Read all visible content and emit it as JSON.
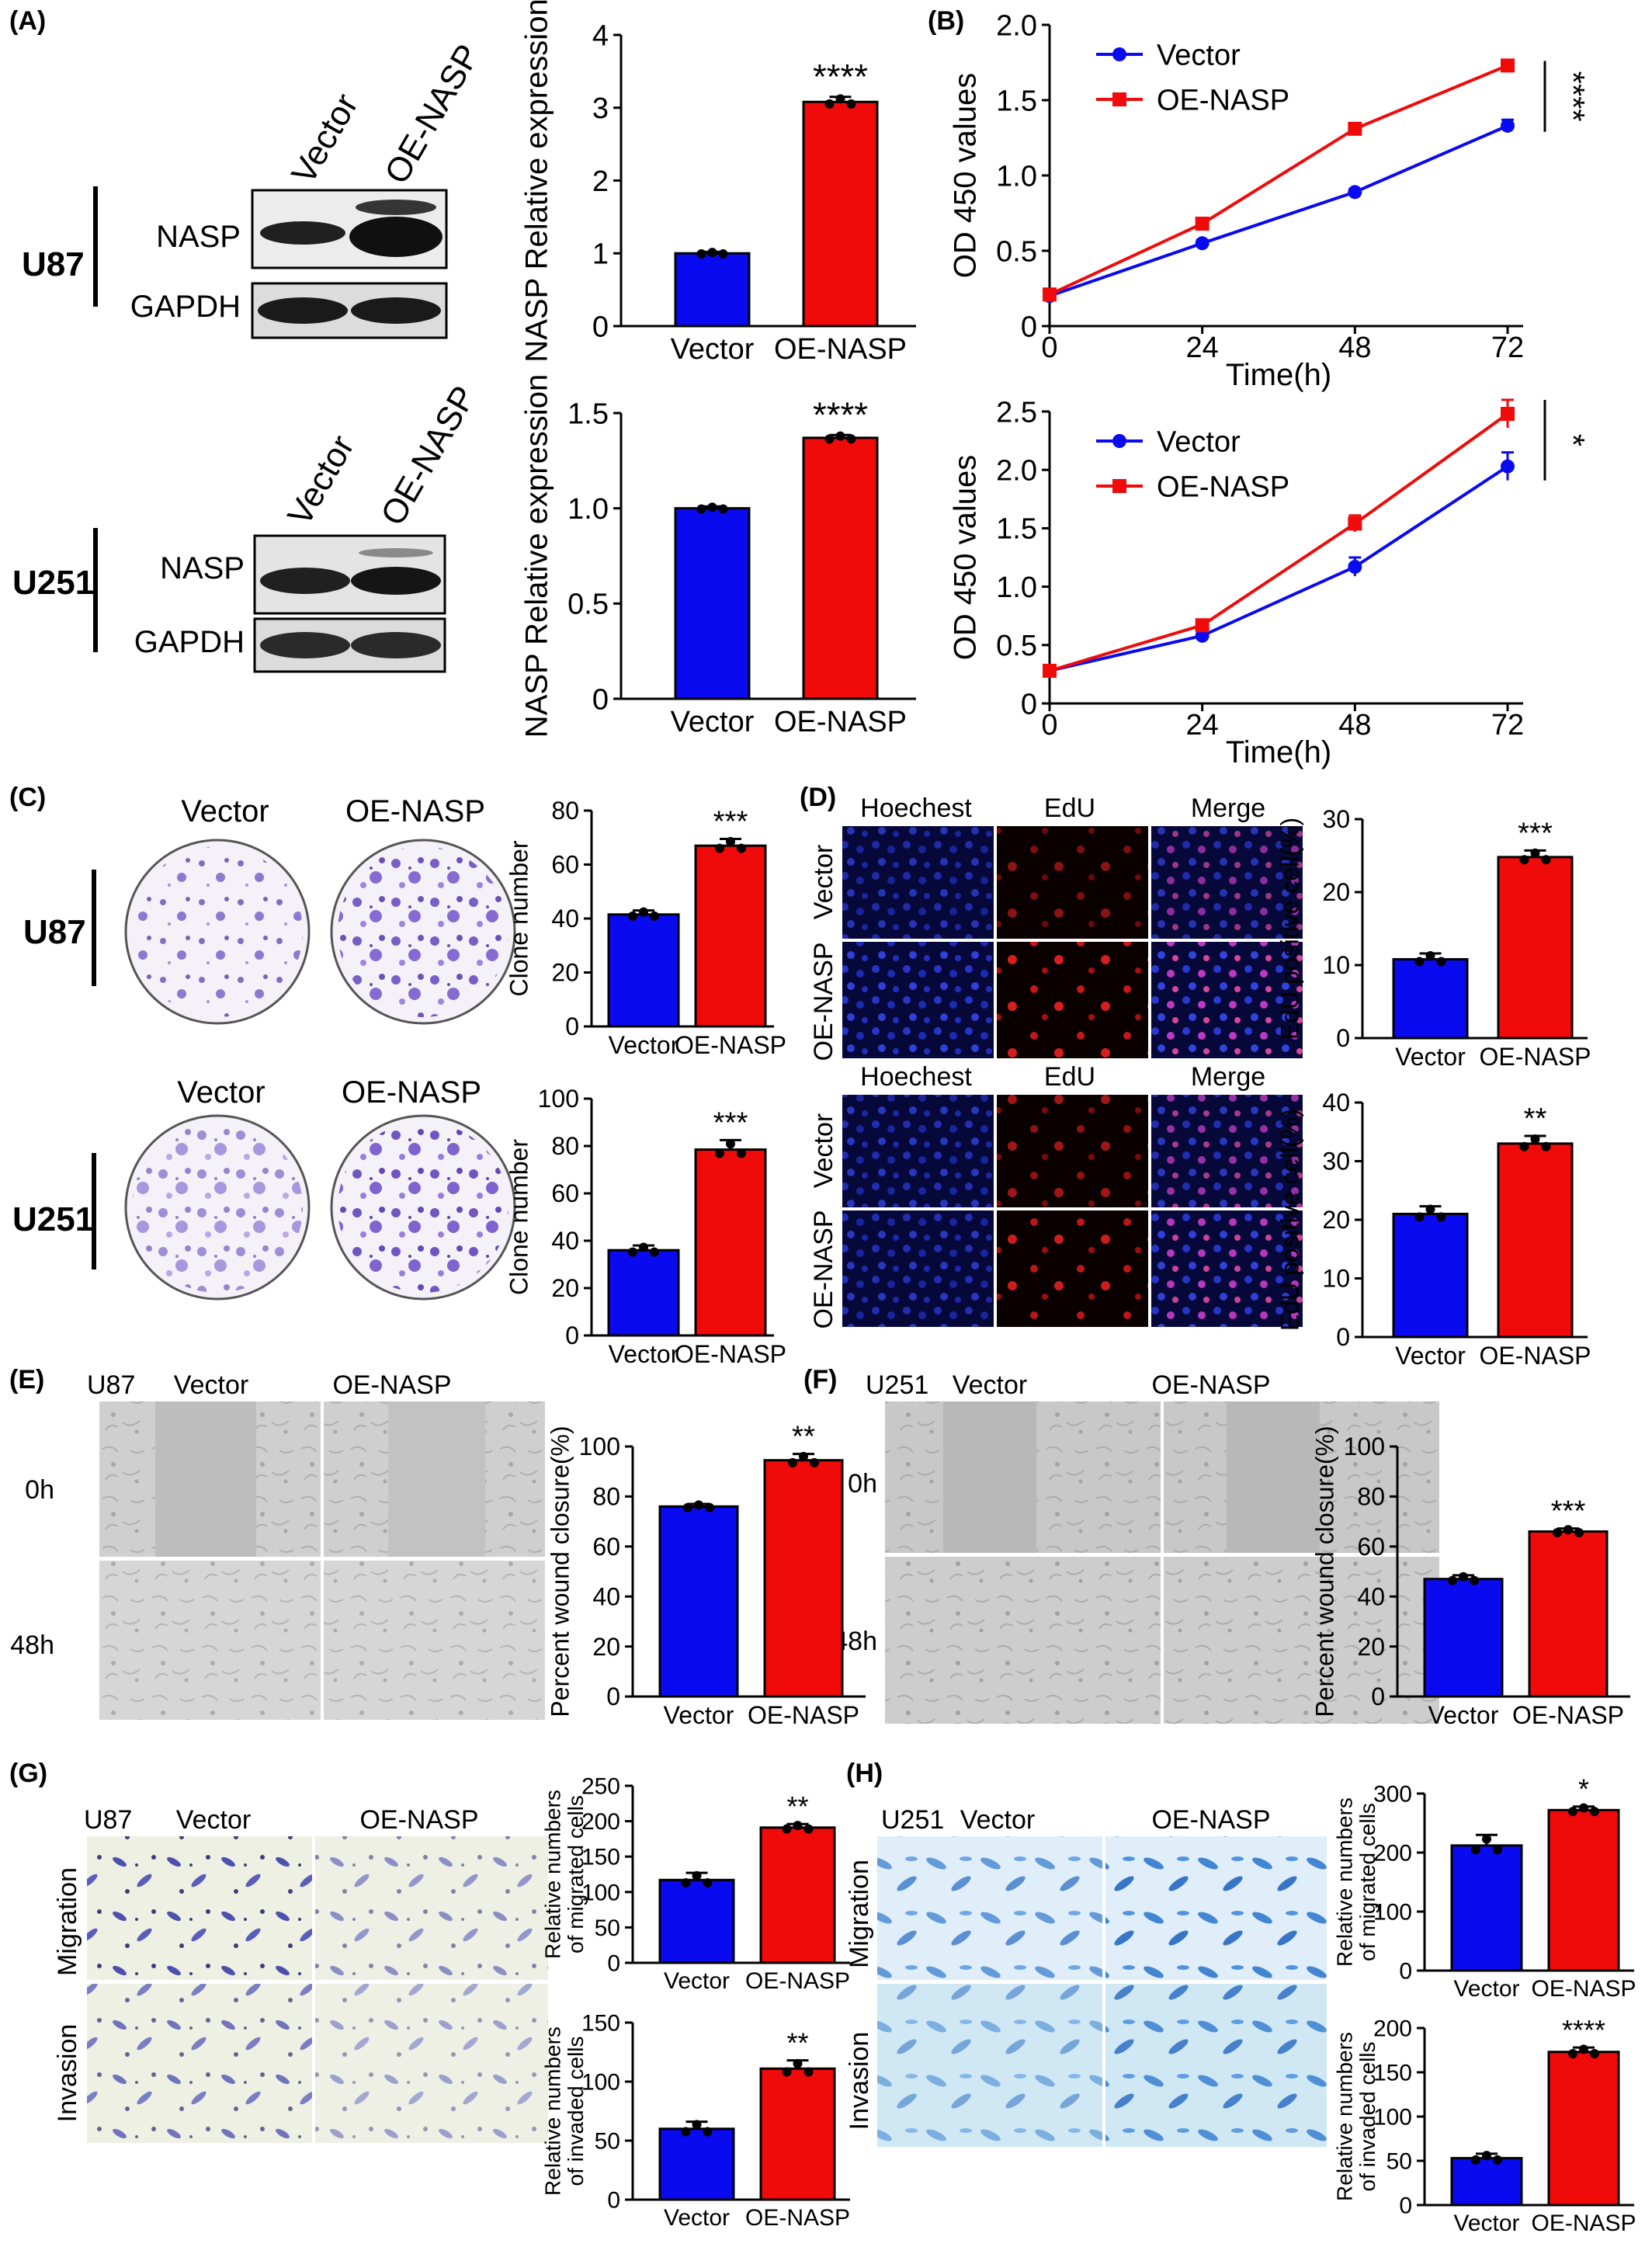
{
  "panels": {
    "A": "(A)",
    "B": "(B)",
    "C": "(C)",
    "D": "(D)",
    "E": "(E)",
    "F": "(F)",
    "G": "(G)",
    "H": "(H)"
  },
  "colors": {
    "vector": "#0a0af0",
    "oe": "#f00a0a"
  },
  "labels": {
    "vector": "Vector",
    "oe": "OE-NASP",
    "u87": "U87",
    "u251": "U251",
    "nasp": "NASP",
    "gapdh": "GAPDH",
    "hoechst": "Hoechest",
    "edu": "EdU",
    "merge": "Merge",
    "h0": "0h",
    "h48": "48h",
    "migration": "Migration",
    "invasion": "Invasion",
    "time": "Time(h)",
    "od": "OD 450 values"
  },
  "chart_data": [
    {
      "id": "a1",
      "type": "bar",
      "categories": [
        "Vector",
        "OE-NASP"
      ],
      "values": [
        1.0,
        3.08
      ],
      "error": [
        0.02,
        0.07
      ],
      "ylabel": "NASP Relative expression",
      "ylim": [
        0,
        4
      ],
      "yticks": [
        "0",
        "1",
        "2",
        "3",
        "4"
      ],
      "sig": "****"
    },
    {
      "id": "a2",
      "type": "bar",
      "categories": [
        "Vector",
        "OE-NASP"
      ],
      "values": [
        1.0,
        1.37
      ],
      "error": [
        0.01,
        0.015
      ],
      "ylabel": "NASP Relative expression",
      "ylim": [
        0,
        1.5
      ],
      "yticks": [
        "0",
        "0.5",
        "1.0",
        "1.5"
      ],
      "sig": "****"
    },
    {
      "id": "b1",
      "type": "line",
      "x": [
        0,
        24,
        48,
        72
      ],
      "xticks": [
        "0",
        "24",
        "48",
        "72"
      ],
      "series": [
        {
          "name": "Vector",
          "values": [
            0.2,
            0.55,
            0.89,
            1.33
          ],
          "error": [
            0.02,
            0.02,
            0.02,
            0.04
          ]
        },
        {
          "name": "OE-NASP",
          "values": [
            0.21,
            0.68,
            1.31,
            1.73
          ],
          "error": [
            0.02,
            0.02,
            0.02,
            0.03
          ]
        }
      ],
      "xlabel": "Time(h)",
      "ylabel": "OD 450 values",
      "ylim": [
        0,
        2.0
      ],
      "yticks": [
        "0",
        "0.5",
        "1.0",
        "1.5",
        "2.0"
      ],
      "legend": "top-left",
      "sig": "****"
    },
    {
      "id": "b2",
      "type": "line",
      "x": [
        0,
        24,
        48,
        72
      ],
      "xticks": [
        "0",
        "24",
        "48",
        "72"
      ],
      "series": [
        {
          "name": "Vector",
          "values": [
            0.28,
            0.58,
            1.17,
            2.03
          ],
          "error": [
            0.02,
            0.02,
            0.08,
            0.12
          ]
        },
        {
          "name": "OE-NASP",
          "values": [
            0.28,
            0.67,
            1.54,
            2.48
          ],
          "error": [
            0.02,
            0.02,
            0.07,
            0.12
          ]
        }
      ],
      "xlabel": "Time(h)",
      "ylabel": "OD 450 values",
      "ylim": [
        0,
        2.5
      ],
      "yticks": [
        "0",
        "0.5",
        "1.0",
        "1.5",
        "2.0",
        "2.5"
      ],
      "legend": "top-left",
      "sig": "*"
    },
    {
      "id": "c1",
      "type": "bar",
      "categories": [
        "Vector",
        "OE-NASP"
      ],
      "values": [
        41.5,
        67
      ],
      "error": [
        1.5,
        2.5
      ],
      "ylabel": "Clone number",
      "ylim": [
        0,
        80
      ],
      "yticks": [
        "0",
        "20",
        "40",
        "60",
        "80"
      ],
      "sig": "***"
    },
    {
      "id": "c2",
      "type": "bar",
      "categories": [
        "Vector",
        "OE-NASP"
      ],
      "values": [
        36,
        78.5
      ],
      "error": [
        2,
        4
      ],
      "ylabel": "Clone number",
      "ylim": [
        0,
        100
      ],
      "yticks": [
        "0",
        "20",
        "40",
        "60",
        "80",
        "100"
      ],
      "sig": "***"
    },
    {
      "id": "d1",
      "type": "bar",
      "categories": [
        "Vector",
        "OE-NASP"
      ],
      "values": [
        10.8,
        24.8
      ],
      "error": [
        0.8,
        0.9
      ],
      "ylabel": "EdU positive cell(%)",
      "ylim": [
        0,
        30
      ],
      "yticks": [
        "0",
        "10",
        "20",
        "30"
      ],
      "sig": "***"
    },
    {
      "id": "d2",
      "type": "bar",
      "categories": [
        "Vector",
        "OE-NASP"
      ],
      "values": [
        21,
        33
      ],
      "error": [
        1.3,
        1.3
      ],
      "ylabel": "EdU positive cell(%)",
      "ylim": [
        0,
        40
      ],
      "yticks": [
        "0",
        "10",
        "20",
        "30",
        "40"
      ],
      "sig": "**"
    },
    {
      "id": "e",
      "type": "bar",
      "categories": [
        "Vector",
        "OE-NASP"
      ],
      "values": [
        76,
        94.5
      ],
      "error": [
        1,
        2.5
      ],
      "ylabel": "Percent wound closure(%)",
      "ylim": [
        0,
        100
      ],
      "yticks": [
        "0",
        "20",
        "40",
        "60",
        "80",
        "100"
      ],
      "sig": "**"
    },
    {
      "id": "f",
      "type": "bar",
      "categories": [
        "Vector",
        "OE-NASP"
      ],
      "values": [
        47,
        66
      ],
      "error": [
        1.5,
        1.2
      ],
      "ylabel": "Percent wound closure(%)",
      "ylim": [
        0,
        100
      ],
      "yticks": [
        "0",
        "20",
        "40",
        "60",
        "80",
        "100"
      ],
      "sig": "***"
    },
    {
      "id": "g1",
      "type": "bar",
      "categories": [
        "Vector",
        "OE-NASP"
      ],
      "values": [
        117,
        191
      ],
      "error": [
        10,
        5
      ],
      "ylabel": "Relative numbers of migrated cells",
      "ylim": [
        0,
        250
      ],
      "yticks": [
        "0",
        "50",
        "100",
        "150",
        "200",
        "250"
      ],
      "sig": "**"
    },
    {
      "id": "g2",
      "type": "bar",
      "categories": [
        "Vector",
        "OE-NASP"
      ],
      "values": [
        60,
        111
      ],
      "error": [
        6,
        7
      ],
      "ylabel": "Relative numbers of invaded cells",
      "ylim": [
        0,
        150
      ],
      "yticks": [
        "0",
        "50",
        "100",
        "150"
      ],
      "sig": "**"
    },
    {
      "id": "h1",
      "type": "bar",
      "categories": [
        "Vector",
        "OE-NASP"
      ],
      "values": [
        212,
        272
      ],
      "error": [
        18,
        6
      ],
      "ylabel": "Relative numbers of migrated cells",
      "ylim": [
        0,
        300
      ],
      "yticks": [
        "0",
        "100",
        "200",
        "300"
      ],
      "sig": "*"
    },
    {
      "id": "h2",
      "type": "bar",
      "categories": [
        "Vector",
        "OE-NASP"
      ],
      "values": [
        53,
        173
      ],
      "error": [
        5,
        5
      ],
      "ylabel": "Relative numbers of invaded cells",
      "ylim": [
        0,
        200
      ],
      "yticks": [
        "0",
        "50",
        "100",
        "150",
        "200"
      ],
      "sig": "****"
    }
  ]
}
